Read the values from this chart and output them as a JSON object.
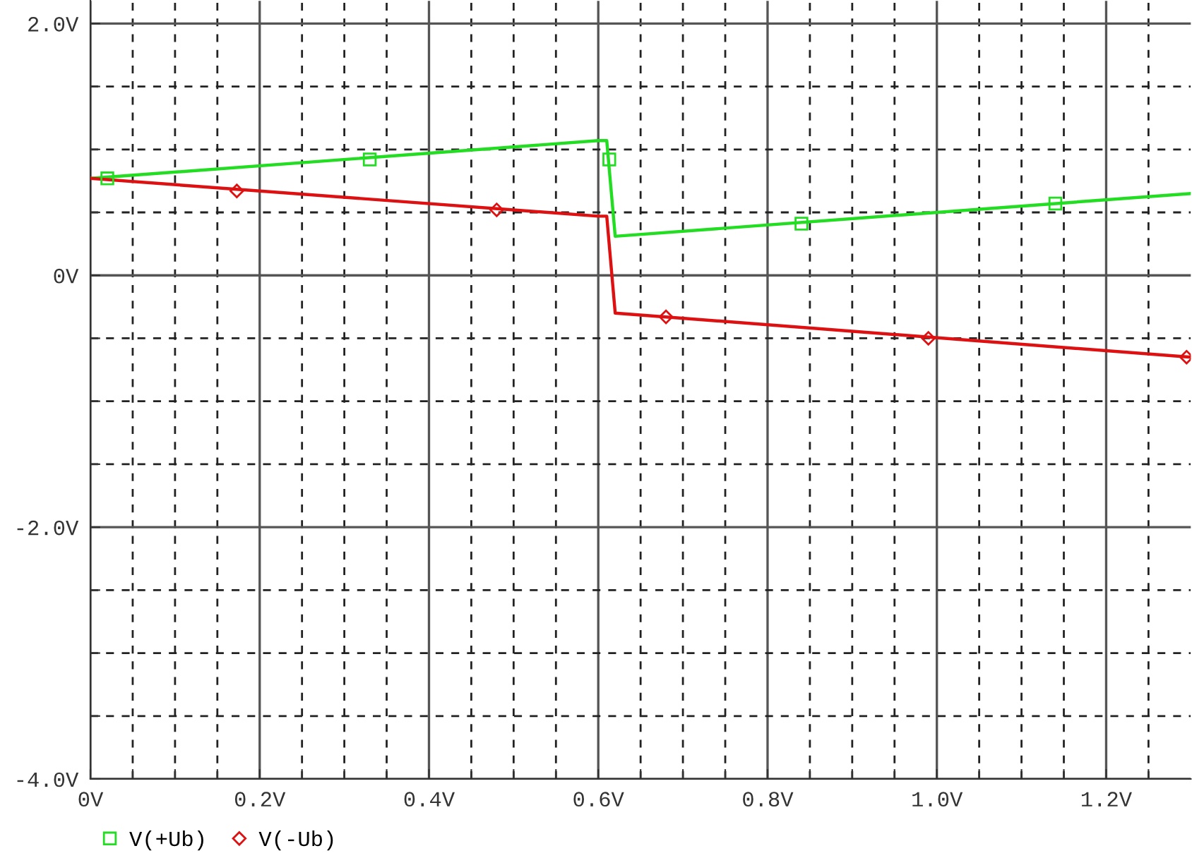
{
  "chart_data": {
    "type": "line",
    "xlim": [
      0,
      1.3
    ],
    "ylim": [
      -4.0,
      2.18
    ],
    "xticks": [
      {
        "value": 0,
        "label": "0V"
      },
      {
        "value": 0.05,
        "label": null
      },
      {
        "value": 0.1,
        "label": null
      },
      {
        "value": 0.15,
        "label": null
      },
      {
        "value": 0.2,
        "label": "0.2V"
      },
      {
        "value": 0.25,
        "label": null
      },
      {
        "value": 0.3,
        "label": null
      },
      {
        "value": 0.35,
        "label": null
      },
      {
        "value": 0.4,
        "label": "0.4V"
      },
      {
        "value": 0.45,
        "label": null
      },
      {
        "value": 0.5,
        "label": null
      },
      {
        "value": 0.55,
        "label": null
      },
      {
        "value": 0.6,
        "label": "0.6V"
      },
      {
        "value": 0.65,
        "label": null
      },
      {
        "value": 0.7,
        "label": null
      },
      {
        "value": 0.75,
        "label": null
      },
      {
        "value": 0.8,
        "label": "0.8V"
      },
      {
        "value": 0.85,
        "label": null
      },
      {
        "value": 0.9,
        "label": null
      },
      {
        "value": 0.95,
        "label": null
      },
      {
        "value": 1.0,
        "label": "1.0V"
      },
      {
        "value": 1.05,
        "label": null
      },
      {
        "value": 1.1,
        "label": null
      },
      {
        "value": 1.15,
        "label": null
      },
      {
        "value": 1.2,
        "label": "1.2V"
      },
      {
        "value": 1.25,
        "label": null
      }
    ],
    "yticks": [
      {
        "value": -4.0,
        "label": "-4.0V"
      },
      {
        "value": -3.5,
        "label": null
      },
      {
        "value": -3.0,
        "label": null
      },
      {
        "value": -2.5,
        "label": null
      },
      {
        "value": -2.0,
        "label": "-2.0V"
      },
      {
        "value": -1.5,
        "label": null
      },
      {
        "value": -1.0,
        "label": null
      },
      {
        "value": -0.5,
        "label": null
      },
      {
        "value": 0,
        "label": "0V"
      },
      {
        "value": 0.5,
        "label": null
      },
      {
        "value": 1.0,
        "label": null
      },
      {
        "value": 1.5,
        "label": null
      },
      {
        "value": 2.0,
        "label": "2.0V"
      }
    ],
    "grid": true,
    "legend": "bottom left",
    "series": [
      {
        "name": "V(+Ub)",
        "color": "#22dd22",
        "x": [
          0,
          0.6,
          0.61,
          0.62,
          1.3
        ],
        "values": [
          0.77,
          1.07,
          1.07,
          0.31,
          0.65
        ]
      },
      {
        "name": "V(-Ub)",
        "color": "#dd1111",
        "x": [
          0,
          0.6,
          0.61,
          0.62,
          1.3
        ],
        "values": [
          0.77,
          0.47,
          0.47,
          -0.3,
          -0.65
        ]
      },
      {
        "type": "scatter",
        "color": "#22dd22",
        "marker": "square",
        "x": [
          0.02,
          0.33,
          0.613,
          0.84,
          1.14
        ],
        "values": [
          0.77,
          0.92,
          0.92,
          0.41,
          0.57
        ]
      },
      {
        "type": "scatter",
        "color": "#dd1111",
        "marker": "diamond",
        "x": [
          0.173,
          0.48,
          0.68,
          0.99,
          1.295
        ],
        "values": [
          0.67,
          0.52,
          -0.33,
          -0.5,
          -0.65
        ]
      }
    ]
  }
}
